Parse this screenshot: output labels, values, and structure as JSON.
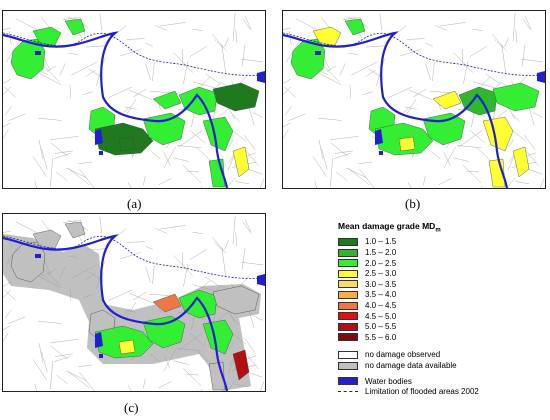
{
  "panels": [
    {
      "id": "a",
      "label": "(a)"
    },
    {
      "id": "b",
      "label": "(b)"
    },
    {
      "id": "c",
      "label": "(c)"
    }
  ],
  "legend": {
    "title": "Mean damage grade MD",
    "title_subscript": "m",
    "grades": [
      {
        "label": "1.0 – 1.5",
        "color": "#1f7a1f"
      },
      {
        "label": "1.5 – 2.0",
        "color": "#2eb82e"
      },
      {
        "label": "2.0 – 2.5",
        "color": "#33ee33"
      },
      {
        "label": "2.5 – 3.0",
        "color": "#ffff33"
      },
      {
        "label": "3.0 – 3.5",
        "color": "#ffd966"
      },
      {
        "label": "3.5 – 4.0",
        "color": "#f5b041"
      },
      {
        "label": "4.0 – 4.5",
        "color": "#ee7744"
      },
      {
        "label": "4.5 – 5.0",
        "color": "#e01010"
      },
      {
        "label": "5.0 – 5.5",
        "color": "#b01010"
      },
      {
        "label": "5.5 – 6.0",
        "color": "#7a0c0c"
      }
    ],
    "no_damage_observed": {
      "label": "no damage observed",
      "color": "#ffffff"
    },
    "no_damage_data": {
      "label": "no damage data available",
      "color": "#c0c0c0"
    },
    "water_bodies": {
      "label": "Water bodies",
      "color": "#2020d0"
    },
    "flood_limit": {
      "label": "Limitation of flooded areas 2002",
      "color": "#1a1aa0"
    }
  }
}
